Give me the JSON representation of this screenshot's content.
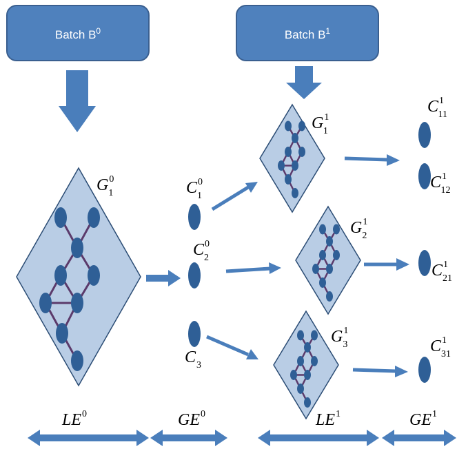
{
  "colors": {
    "box_fill": "#4f81bd",
    "box_stroke": "#3a5f8f",
    "arrow": "#4a7ebb",
    "diamond_fill": "#b9cde5",
    "diamond_stroke": "#2c4d75",
    "node": "#2f5f96",
    "edge": "#5b3a6b"
  },
  "batches": [
    {
      "label": "Batch B",
      "sup": "0"
    },
    {
      "label": "Batch B",
      "sup": "1"
    }
  ],
  "graphs": [
    {
      "base": "G",
      "sub": "1",
      "sup": "0"
    },
    {
      "base": "G",
      "sub": "1",
      "sup": "1"
    },
    {
      "base": "G",
      "sub": "2",
      "sup": "1"
    },
    {
      "base": "G",
      "sub": "3",
      "sup": "1"
    }
  ],
  "clusters_level0": [
    {
      "base": "C",
      "sub": "1",
      "sup": "0"
    },
    {
      "base": "C",
      "sub": "2",
      "sup": "0"
    },
    {
      "base": "C",
      "sub": "3",
      "sup": ""
    }
  ],
  "clusters_level1": [
    {
      "base": "C",
      "sub": "11",
      "sup": "1"
    },
    {
      "base": "C",
      "sub": "12",
      "sup": "1"
    },
    {
      "base": "C",
      "sub": "21",
      "sup": "1"
    },
    {
      "base": "C",
      "sub": "31",
      "sup": "1"
    }
  ],
  "spans": [
    {
      "base": "LE",
      "sup": "0"
    },
    {
      "base": "GE",
      "sup": "0"
    },
    {
      "base": "LE",
      "sup": "1"
    },
    {
      "base": "GE",
      "sup": "1"
    }
  ]
}
